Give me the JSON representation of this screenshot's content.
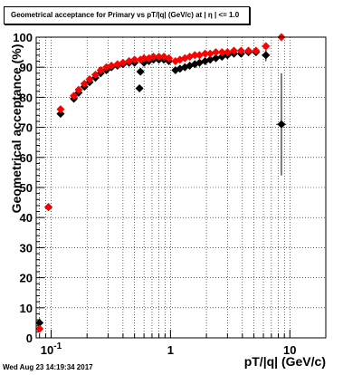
{
  "title": "Geometrical acceptance for Primary vs pT/|q| (GeV/c) at | η | <= 1.0",
  "xlabel": "pT/|q| (GeV/c)",
  "ylabel": "Geometrical acceptance (%)",
  "datestamp": "Wed Aug 23 14:19:34 2017",
  "chart_data": {
    "type": "scatter",
    "title": "Geometrical acceptance for Primary vs pT/|q| (GeV/c) at | η | <= 1.0",
    "xlabel": "pT/|q| (GeV/c)",
    "ylabel": "Geometrical acceptance (%)",
    "xscale": "log",
    "xlim": [
      0.075,
      20
    ],
    "ylim": [
      0,
      100
    ],
    "grid": true,
    "legend": "none",
    "x_tick_labels": [
      {
        "value": 0.1,
        "label": "10",
        "sup": "-1"
      },
      {
        "value": 1,
        "label": "1",
        "sup": ""
      },
      {
        "value": 10,
        "label": "10",
        "sup": ""
      }
    ],
    "y_ticks": [
      0,
      10,
      20,
      30,
      40,
      50,
      60,
      70,
      80,
      90,
      100
    ],
    "series": [
      {
        "color": "#000000",
        "points": [
          {
            "x": 0.08,
            "y": 5.0,
            "ex": 0.004,
            "ey": 1.5
          },
          {
            "x": 0.095,
            "y": 43.5,
            "ex": 0.006,
            "ey": 0
          },
          {
            "x": 0.12,
            "y": 74.5,
            "ex": 0.005,
            "ey": 0
          },
          {
            "x": 0.155,
            "y": 79.5,
            "ex": 0,
            "ey": 0
          },
          {
            "x": 0.17,
            "y": 81.5,
            "ex": 0,
            "ey": 0
          },
          {
            "x": 0.19,
            "y": 83.5,
            "ex": 0,
            "ey": 0
          },
          {
            "x": 0.21,
            "y": 85.0,
            "ex": 0,
            "ey": 0
          },
          {
            "x": 0.235,
            "y": 86.5,
            "ex": 0,
            "ey": 0
          },
          {
            "x": 0.26,
            "y": 88.0,
            "ex": 0,
            "ey": 0
          },
          {
            "x": 0.29,
            "y": 89.0,
            "ex": 0,
            "ey": 0
          },
          {
            "x": 0.32,
            "y": 90.0,
            "ex": 0,
            "ey": 0
          },
          {
            "x": 0.36,
            "y": 90.5,
            "ex": 0,
            "ey": 0
          },
          {
            "x": 0.4,
            "y": 91.0,
            "ex": 0,
            "ey": 0
          },
          {
            "x": 0.45,
            "y": 91.5,
            "ex": 0,
            "ey": 0
          },
          {
            "x": 0.5,
            "y": 91.5,
            "ex": 0,
            "ey": 0
          },
          {
            "x": 0.55,
            "y": 83.0,
            "ex": 0,
            "ey": 0
          },
          {
            "x": 0.56,
            "y": 88.5,
            "ex": 0,
            "ey": 0
          },
          {
            "x": 0.6,
            "y": 91.5,
            "ex": 0,
            "ey": 0
          },
          {
            "x": 0.66,
            "y": 92.0,
            "ex": 0,
            "ey": 0
          },
          {
            "x": 0.72,
            "y": 92.5,
            "ex": 0,
            "ey": 0
          },
          {
            "x": 0.8,
            "y": 92.5,
            "ex": 0,
            "ey": 0
          },
          {
            "x": 0.88,
            "y": 92.5,
            "ex": 0,
            "ey": 0
          },
          {
            "x": 0.97,
            "y": 92.0,
            "ex": 0,
            "ey": 0
          },
          {
            "x": 1.1,
            "y": 89.0,
            "ex": 0,
            "ey": 0
          },
          {
            "x": 1.2,
            "y": 89.5,
            "ex": 0,
            "ey": 0
          },
          {
            "x": 1.32,
            "y": 90.0,
            "ex": 0,
            "ey": 0
          },
          {
            "x": 1.45,
            "y": 90.5,
            "ex": 0,
            "ey": 0
          },
          {
            "x": 1.6,
            "y": 91.0,
            "ex": 0,
            "ey": 0
          },
          {
            "x": 1.75,
            "y": 91.5,
            "ex": 0,
            "ey": 0
          },
          {
            "x": 1.95,
            "y": 92.0,
            "ex": 0,
            "ey": 0
          },
          {
            "x": 2.15,
            "y": 92.5,
            "ex": 0,
            "ey": 0
          },
          {
            "x": 2.4,
            "y": 93.0,
            "ex": 0,
            "ey": 0
          },
          {
            "x": 2.7,
            "y": 93.5,
            "ex": 0,
            "ey": 0
          },
          {
            "x": 3.0,
            "y": 94.0,
            "ex": 0,
            "ey": 0
          },
          {
            "x": 3.4,
            "y": 94.5,
            "ex": 0,
            "ey": 0
          },
          {
            "x": 3.9,
            "y": 94.5,
            "ex": 0,
            "ey": 0
          },
          {
            "x": 4.5,
            "y": 95.0,
            "ex": 0,
            "ey": 0
          },
          {
            "x": 5.2,
            "y": 95.0,
            "ex": 0,
            "ey": 0
          },
          {
            "x": 6.3,
            "y": 94.0,
            "ex": 0.5,
            "ey": 2.0
          },
          {
            "x": 8.5,
            "y": 71.0,
            "ex": 0.8,
            "ey": 17.0
          }
        ]
      },
      {
        "color": "#ff0000",
        "points": [
          {
            "x": 0.08,
            "y": 3.0,
            "ex": 0.004,
            "ey": 0
          },
          {
            "x": 0.095,
            "y": 43.5,
            "ex": 0.006,
            "ey": 0
          },
          {
            "x": 0.12,
            "y": 76.0,
            "ex": 0.005,
            "ey": 0
          },
          {
            "x": 0.155,
            "y": 80.5,
            "ex": 0,
            "ey": 0
          },
          {
            "x": 0.17,
            "y": 82.5,
            "ex": 0,
            "ey": 0
          },
          {
            "x": 0.19,
            "y": 84.5,
            "ex": 0,
            "ey": 0
          },
          {
            "x": 0.21,
            "y": 86.0,
            "ex": 0,
            "ey": 0
          },
          {
            "x": 0.235,
            "y": 87.5,
            "ex": 0,
            "ey": 0
          },
          {
            "x": 0.26,
            "y": 89.0,
            "ex": 0,
            "ey": 0
          },
          {
            "x": 0.29,
            "y": 90.0,
            "ex": 0,
            "ey": 0
          },
          {
            "x": 0.32,
            "y": 90.5,
            "ex": 0,
            "ey": 0
          },
          {
            "x": 0.36,
            "y": 91.0,
            "ex": 0,
            "ey": 0
          },
          {
            "x": 0.4,
            "y": 91.5,
            "ex": 0,
            "ey": 0
          },
          {
            "x": 0.45,
            "y": 92.0,
            "ex": 0,
            "ey": 0
          },
          {
            "x": 0.5,
            "y": 92.5,
            "ex": 0,
            "ey": 0
          },
          {
            "x": 0.56,
            "y": 92.5,
            "ex": 0,
            "ey": 0
          },
          {
            "x": 0.6,
            "y": 93.0,
            "ex": 0,
            "ey": 0
          },
          {
            "x": 0.66,
            "y": 93.0,
            "ex": 0,
            "ey": 0
          },
          {
            "x": 0.72,
            "y": 93.5,
            "ex": 0,
            "ey": 0
          },
          {
            "x": 0.8,
            "y": 93.5,
            "ex": 0,
            "ey": 0
          },
          {
            "x": 0.88,
            "y": 93.5,
            "ex": 0,
            "ey": 0
          },
          {
            "x": 0.97,
            "y": 93.0,
            "ex": 0,
            "ey": 0
          },
          {
            "x": 1.1,
            "y": 92.0,
            "ex": 0,
            "ey": 0
          },
          {
            "x": 1.2,
            "y": 92.5,
            "ex": 0,
            "ey": 0
          },
          {
            "x": 1.32,
            "y": 93.0,
            "ex": 0,
            "ey": 0
          },
          {
            "x": 1.45,
            "y": 93.5,
            "ex": 0,
            "ey": 0
          },
          {
            "x": 1.6,
            "y": 94.0,
            "ex": 0,
            "ey": 0
          },
          {
            "x": 1.75,
            "y": 94.0,
            "ex": 0,
            "ey": 0
          },
          {
            "x": 1.95,
            "y": 94.5,
            "ex": 0,
            "ey": 0
          },
          {
            "x": 2.15,
            "y": 94.5,
            "ex": 0,
            "ey": 0
          },
          {
            "x": 2.4,
            "y": 95.0,
            "ex": 0,
            "ey": 0
          },
          {
            "x": 2.7,
            "y": 95.0,
            "ex": 0,
            "ey": 0
          },
          {
            "x": 3.0,
            "y": 95.0,
            "ex": 0,
            "ey": 0
          },
          {
            "x": 3.4,
            "y": 95.5,
            "ex": 0,
            "ey": 0
          },
          {
            "x": 3.9,
            "y": 95.5,
            "ex": 0,
            "ey": 0
          },
          {
            "x": 4.5,
            "y": 95.5,
            "ex": 0,
            "ey": 0
          },
          {
            "x": 5.2,
            "y": 95.5,
            "ex": 0,
            "ey": 0
          },
          {
            "x": 6.3,
            "y": 97.0,
            "ex": 0.5,
            "ey": 0
          },
          {
            "x": 8.5,
            "y": 100.0,
            "ex": 0.8,
            "ey": 0
          }
        ]
      }
    ]
  }
}
